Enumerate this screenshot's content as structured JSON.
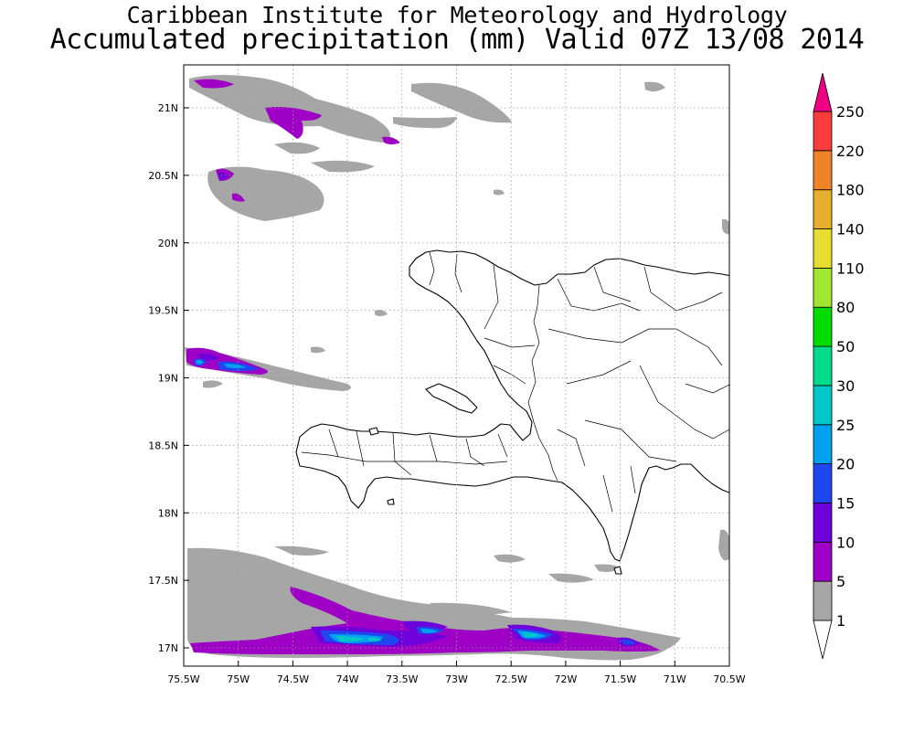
{
  "title": "Caribbean Institute for Meteorology and Hydrology",
  "subtitle": "Accumulated precipitation (mm) Valid 07Z 13/08 2014",
  "map": {
    "lon_range": [
      -75.5,
      -70.5
    ],
    "lat_range": [
      16.9,
      21.3
    ],
    "grid": "dotted",
    "lon_ticks": [
      {
        "value": -75.5,
        "label": "75.5W"
      },
      {
        "value": -75,
        "label": "75W"
      },
      {
        "value": -74.5,
        "label": "74.5W"
      },
      {
        "value": -74,
        "label": "74W"
      },
      {
        "value": -73.5,
        "label": "73.5W"
      },
      {
        "value": -73,
        "label": "73W"
      },
      {
        "value": -72.5,
        "label": "72.5W"
      },
      {
        "value": -72,
        "label": "72W"
      },
      {
        "value": -71.5,
        "label": "71.5W"
      },
      {
        "value": -71,
        "label": "71W"
      },
      {
        "value": -70.5,
        "label": "70.5W"
      }
    ],
    "lat_ticks": [
      {
        "value": 21,
        "label": "21N"
      },
      {
        "value": 20.5,
        "label": "20.5N"
      },
      {
        "value": 20,
        "label": "20N"
      },
      {
        "value": 19.5,
        "label": "19.5N"
      },
      {
        "value": 19,
        "label": "19N"
      },
      {
        "value": 18.5,
        "label": "18.5N"
      },
      {
        "value": 18,
        "label": "18N"
      },
      {
        "value": 17.5,
        "label": "17.5N"
      },
      {
        "value": 17,
        "label": "17N"
      }
    ]
  },
  "colorbar": {
    "levels": [
      "1",
      "5",
      "10",
      "15",
      "20",
      "25",
      "30",
      "50",
      "80",
      "110",
      "140",
      "180",
      "220",
      "250"
    ],
    "colors": [
      "#a6a6a6",
      "#9f00c6",
      "#6e00dc",
      "#2046f0",
      "#00a0f0",
      "#00c8c8",
      "#00dc8c",
      "#00dc00",
      "#a0e632",
      "#e6dc32",
      "#e6af2d",
      "#f08228",
      "#fa3c3c",
      "#f00082"
    ],
    "under_color": "#ffffff"
  }
}
